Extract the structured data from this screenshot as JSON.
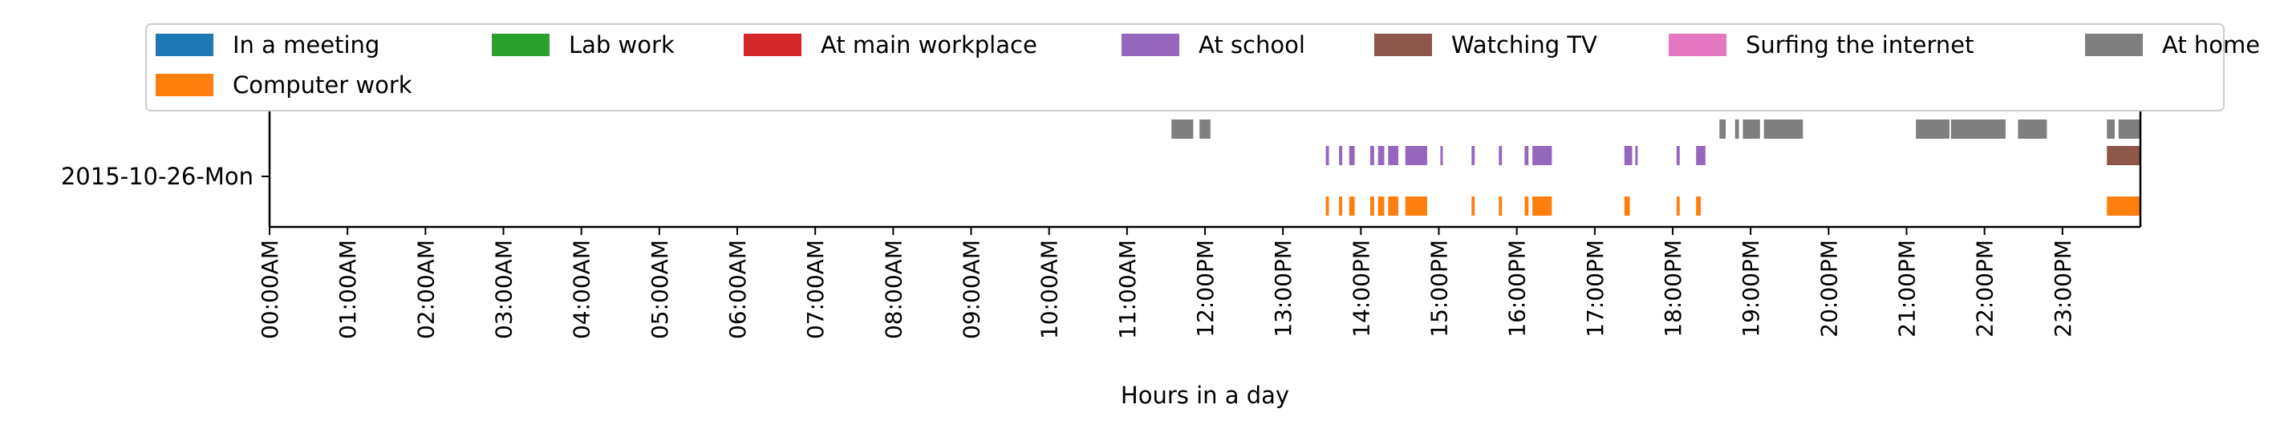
{
  "chart_data": {
    "type": "timeline",
    "title": "",
    "xlabel": "Hours in a day",
    "ylabel": "",
    "xlim": [
      0,
      24
    ],
    "grid": false,
    "legend_placement": "top",
    "y_categories": [
      "2015-10-26-Mon"
    ],
    "x_tick_labels": [
      "00:00AM",
      "01:00AM",
      "02:00AM",
      "03:00AM",
      "04:00AM",
      "05:00AM",
      "06:00AM",
      "07:00AM",
      "08:00AM",
      "09:00AM",
      "10:00AM",
      "11:00AM",
      "12:00PM",
      "13:00PM",
      "14:00PM",
      "15:00PM",
      "16:00PM",
      "17:00PM",
      "18:00PM",
      "19:00PM",
      "20:00PM",
      "21:00PM",
      "22:00PM",
      "23:00PM"
    ],
    "legend": [
      {
        "name": "In a meeting",
        "color": "#1f77b4"
      },
      {
        "name": "Lab work",
        "color": "#2ca02c"
      },
      {
        "name": "At main workplace",
        "color": "#d62728"
      },
      {
        "name": "At school",
        "color": "#9467bd"
      },
      {
        "name": "Watching TV",
        "color": "#8c564b"
      },
      {
        "name": "Surfing the internet",
        "color": "#e377c2"
      },
      {
        "name": "At home",
        "color": "#7f7f7f"
      },
      {
        "name": "Computer work",
        "color": "#ff7f0e"
      }
    ],
    "series": [
      {
        "name": "At home",
        "color": "#7f7f7f",
        "lane": 3,
        "intervals": [
          [
            11.57,
            11.85
          ],
          [
            11.93,
            12.07
          ],
          [
            18.6,
            18.68
          ],
          [
            18.8,
            18.85
          ],
          [
            18.9,
            19.12
          ],
          [
            19.17,
            19.67
          ],
          [
            21.12,
            21.55
          ],
          [
            21.57,
            22.27
          ],
          [
            22.43,
            22.8
          ],
          [
            23.57,
            23.67
          ],
          [
            23.72,
            24.0
          ]
        ]
      },
      {
        "name": "At school",
        "color": "#9467bd",
        "lane": 2,
        "intervals": [
          [
            13.55,
            13.59
          ],
          [
            13.72,
            13.76
          ],
          [
            13.85,
            13.92
          ],
          [
            14.12,
            14.17
          ],
          [
            14.22,
            14.3
          ],
          [
            14.35,
            14.48
          ],
          [
            14.57,
            14.85
          ],
          [
            15.02,
            15.05
          ],
          [
            15.42,
            15.46
          ],
          [
            15.77,
            15.81
          ],
          [
            16.1,
            16.15
          ],
          [
            16.2,
            16.45
          ],
          [
            17.38,
            17.48
          ],
          [
            17.52,
            17.55
          ],
          [
            18.05,
            18.09
          ],
          [
            18.3,
            18.42
          ]
        ]
      },
      {
        "name": "Watching TV",
        "color": "#8c564b",
        "lane": 2,
        "intervals": [
          [
            23.57,
            24.0
          ]
        ]
      },
      {
        "name": "Computer work",
        "color": "#ff7f0e",
        "lane": 1,
        "intervals": [
          [
            13.55,
            13.59
          ],
          [
            13.72,
            13.76
          ],
          [
            13.85,
            13.92
          ],
          [
            14.12,
            14.17
          ],
          [
            14.22,
            14.3
          ],
          [
            14.35,
            14.48
          ],
          [
            14.57,
            14.85
          ],
          [
            15.42,
            15.46
          ],
          [
            15.77,
            15.81
          ],
          [
            16.1,
            16.15
          ],
          [
            16.2,
            16.45
          ],
          [
            17.38,
            17.45
          ],
          [
            18.05,
            18.09
          ],
          [
            18.3,
            18.36
          ],
          [
            23.57,
            24.0
          ]
        ]
      }
    ]
  }
}
